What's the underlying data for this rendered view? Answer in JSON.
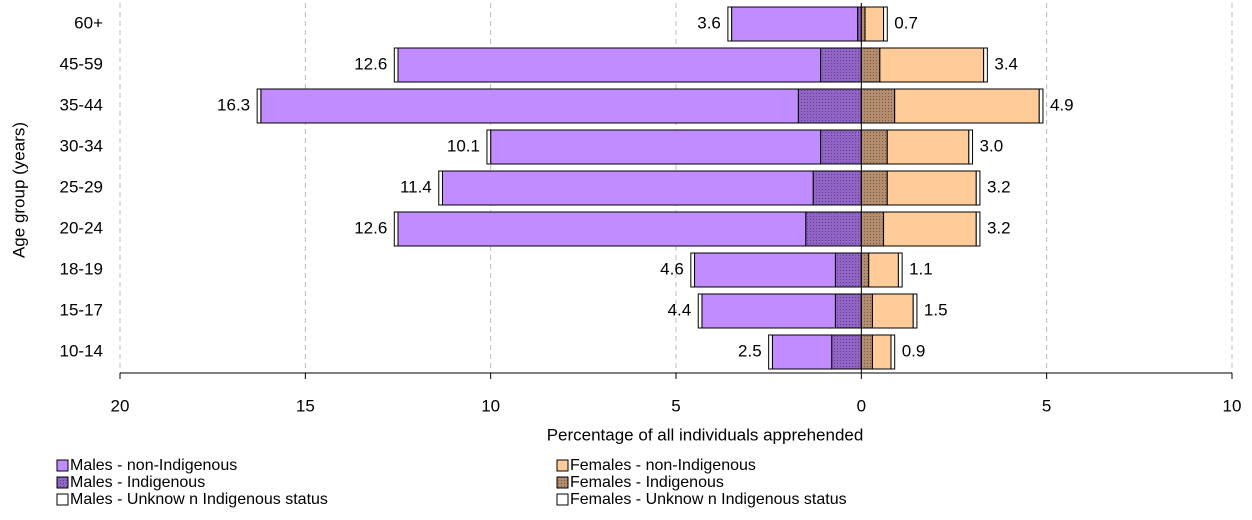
{
  "chart_data": {
    "type": "pyramid",
    "y_label": "Age group (years)",
    "x_label": "Percentage of all individuals apprehended",
    "categories": [
      "60+",
      "45-59",
      "35-44",
      "30-34",
      "25-29",
      "20-24",
      "18-19",
      "15-17",
      "10-14"
    ],
    "series": [
      {
        "name": "Males - Indigenous",
        "color": "#9164c8",
        "side": "left",
        "values": [
          0.1,
          1.1,
          1.7,
          1.1,
          1.3,
          1.5,
          0.7,
          0.7,
          0.8
        ]
      },
      {
        "name": "Males - non-Indigenous",
        "color": "#c08cff",
        "side": "left",
        "values": [
          3.4,
          11.4,
          14.5,
          8.9,
          10.0,
          11.0,
          3.8,
          3.6,
          1.6
        ]
      },
      {
        "name": "Males - Unknow n Indigenous status",
        "color": "#ffffff",
        "side": "left",
        "values": [
          0.1,
          0.1,
          0.1,
          0.1,
          0.1,
          0.1,
          0.1,
          0.1,
          0.1
        ]
      },
      {
        "name": "Females - Indigenous",
        "color": "#b48c6e",
        "side": "right",
        "values": [
          0.1,
          0.5,
          0.9,
          0.7,
          0.7,
          0.6,
          0.2,
          0.3,
          0.3
        ]
      },
      {
        "name": "Females - non-Indigenous",
        "color": "#ffcc99",
        "side": "right",
        "values": [
          0.5,
          2.8,
          3.9,
          2.2,
          2.4,
          2.5,
          0.8,
          1.1,
          0.5
        ]
      },
      {
        "name": "Females - Unknow n Indigenous status",
        "color": "#ffffff",
        "side": "right",
        "values": [
          0.1,
          0.1,
          0.1,
          0.1,
          0.1,
          0.1,
          0.1,
          0.1,
          0.1
        ]
      }
    ],
    "male_totals": [
      3.6,
      12.6,
      16.3,
      10.1,
      11.4,
      12.6,
      4.6,
      4.4,
      2.5
    ],
    "male_total_labels": [
      "3.6",
      "12.6",
      "16.3",
      "10.1",
      "11.4",
      "12.6",
      "4.6",
      "4.4",
      "2.5"
    ],
    "female_totals": [
      0.7,
      3.4,
      4.9,
      3.0,
      3.2,
      3.2,
      1.1,
      1.5,
      0.9
    ],
    "female_total_labels": [
      "0.7",
      "3.4",
      "4.9",
      "3.0",
      "3.2",
      "3.2",
      "1.1",
      "1.5",
      "0.9"
    ],
    "xlim": [
      -20,
      10
    ],
    "xticks": [
      {
        "value": -20,
        "label": "20"
      },
      {
        "value": -15,
        "label": "15"
      },
      {
        "value": -10,
        "label": "10"
      },
      {
        "value": -5,
        "label": "5"
      },
      0,
      5,
      10
    ],
    "grid": true
  }
}
